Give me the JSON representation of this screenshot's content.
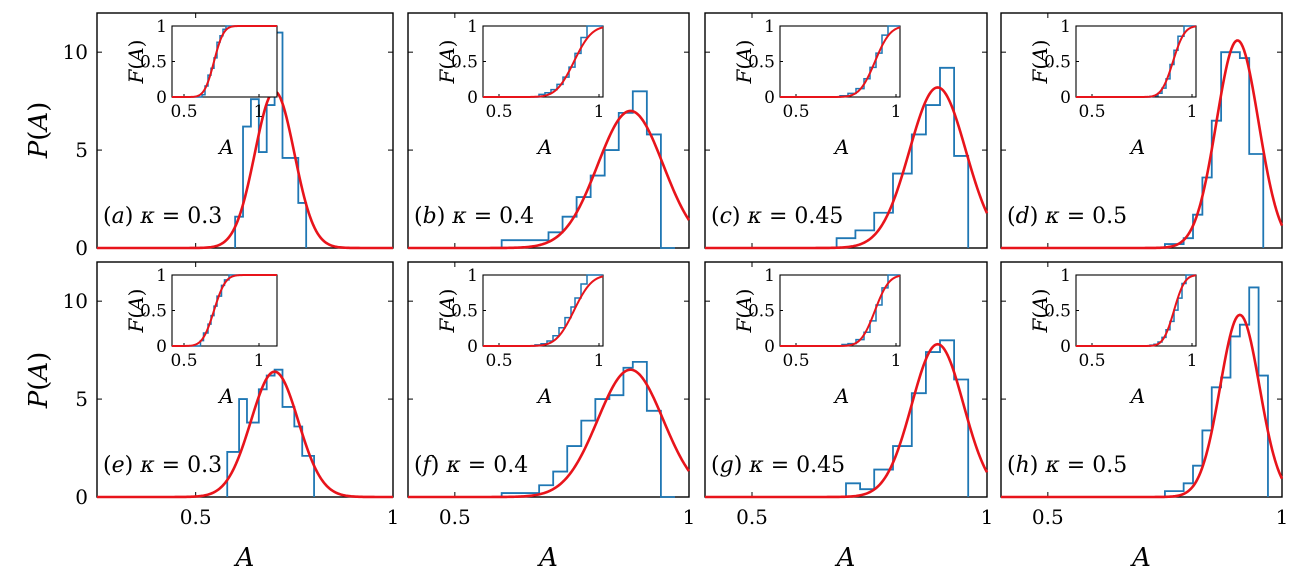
{
  "figure": {
    "ylabel_main": "P(A)",
    "xlabel_main": "A",
    "ylabel_inset": "F(A)",
    "xlabel_inset": "A"
  },
  "chart_data": [
    {
      "type": "bar",
      "panel": "(a) κ = 0.3",
      "label": "(a) κ = 0.3",
      "xlim": [
        0.25,
        1
      ],
      "ylim": [
        0,
        12
      ],
      "mean": 0.7,
      "std": 0.05,
      "peak": 8.0,
      "hist": {
        "edges": [
          0.6,
          0.62,
          0.64,
          0.66,
          0.68,
          0.7,
          0.72,
          0.74,
          0.76,
          0.78
        ],
        "values": [
          1.6,
          6.2,
          7.6,
          4.9,
          7.3,
          11.0,
          4.6,
          4.6,
          2.3
        ]
      }
    },
    {
      "type": "bar",
      "panel": "(b) κ = 0.4",
      "label": "(b) κ = 0.4",
      "xlim": [
        0.4,
        1
      ],
      "ylim": [
        0,
        12
      ],
      "mean": 0.875,
      "std": 0.07,
      "peak": 7.0,
      "hist": {
        "edges": [
          0.6,
          0.7,
          0.73,
          0.76,
          0.79,
          0.82,
          0.85,
          0.88,
          0.91,
          0.94,
          0.97
        ],
        "values": [
          0.4,
          0.8,
          1.6,
          2.6,
          3.7,
          5.0,
          6.9,
          8.0,
          5.8,
          0.0
        ]
      }
    },
    {
      "type": "bar",
      "panel": "(c) κ = 0.45",
      "label": "(c) κ = 0.45",
      "xlim": [
        0.4,
        1
      ],
      "ylim": [
        0,
        12
      ],
      "mean": 0.895,
      "std": 0.06,
      "peak": 8.2,
      "hist": {
        "edges": [
          0.68,
          0.72,
          0.76,
          0.8,
          0.84,
          0.87,
          0.9,
          0.93,
          0.96
        ],
        "values": [
          0.5,
          0.9,
          1.8,
          3.8,
          5.8,
          7.3,
          9.2,
          4.7
        ]
      }
    },
    {
      "type": "bar",
      "panel": "(d) κ = 0.5",
      "label": "(d) κ = 0.5",
      "xlim": [
        0.4,
        1
      ],
      "ylim": [
        0,
        12
      ],
      "mean": 0.905,
      "std": 0.045,
      "peak": 10.6,
      "hist": {
        "edges": [
          0.75,
          0.79,
          0.81,
          0.83,
          0.85,
          0.87,
          0.89,
          0.91,
          0.93,
          0.96
        ],
        "values": [
          0.2,
          0.5,
          1.7,
          3.6,
          6.5,
          10.0,
          10.0,
          9.7,
          4.8
        ]
      }
    },
    {
      "type": "bar",
      "panel": "(e) κ = 0.3",
      "label": "(e) κ = 0.3",
      "xlim": [
        0.25,
        1
      ],
      "ylim": [
        0,
        12
      ],
      "mean": 0.7,
      "std": 0.06,
      "peak": 6.4,
      "hist": {
        "edges": [
          0.58,
          0.61,
          0.63,
          0.66,
          0.68,
          0.7,
          0.72,
          0.75,
          0.77,
          0.8
        ],
        "values": [
          2.3,
          5.0,
          3.8,
          5.5,
          6.2,
          6.5,
          4.6,
          3.6,
          2.1
        ]
      }
    },
    {
      "type": "bar",
      "panel": "(f) κ = 0.4",
      "label": "(f) κ = 0.4",
      "xlim": [
        0.4,
        1
      ],
      "ylim": [
        0,
        12
      ],
      "mean": 0.875,
      "std": 0.07,
      "peak": 6.5,
      "hist": {
        "edges": [
          0.6,
          0.68,
          0.71,
          0.74,
          0.77,
          0.8,
          0.83,
          0.86,
          0.88,
          0.91,
          0.94,
          0.97
        ],
        "values": [
          0.2,
          0.6,
          1.3,
          2.6,
          3.9,
          5.0,
          5.2,
          6.6,
          6.9,
          4.4,
          0.0
        ]
      }
    },
    {
      "type": "bar",
      "panel": "(g) κ = 0.45",
      "label": "(g) κ = 0.45",
      "xlim": [
        0.4,
        1
      ],
      "ylim": [
        0,
        12
      ],
      "mean": 0.895,
      "std": 0.055,
      "peak": 7.8,
      "hist": {
        "edges": [
          0.7,
          0.73,
          0.76,
          0.8,
          0.84,
          0.87,
          0.9,
          0.93,
          0.96
        ],
        "values": [
          0.7,
          0.4,
          1.4,
          2.6,
          5.3,
          7.4,
          8.0,
          6.0
        ]
      }
    },
    {
      "type": "bar",
      "panel": "(h) κ = 0.5",
      "label": "(h) κ = 0.5",
      "xlim": [
        0.4,
        1
      ],
      "ylim": [
        0,
        12
      ],
      "mean": 0.91,
      "std": 0.042,
      "peak": 9.3,
      "hist": {
        "edges": [
          0.75,
          0.79,
          0.81,
          0.83,
          0.85,
          0.87,
          0.89,
          0.91,
          0.93,
          0.95,
          0.97
        ],
        "values": [
          0.3,
          0.7,
          1.6,
          3.4,
          5.6,
          6.1,
          8.2,
          8.8,
          10.7,
          6.2
        ]
      }
    }
  ]
}
